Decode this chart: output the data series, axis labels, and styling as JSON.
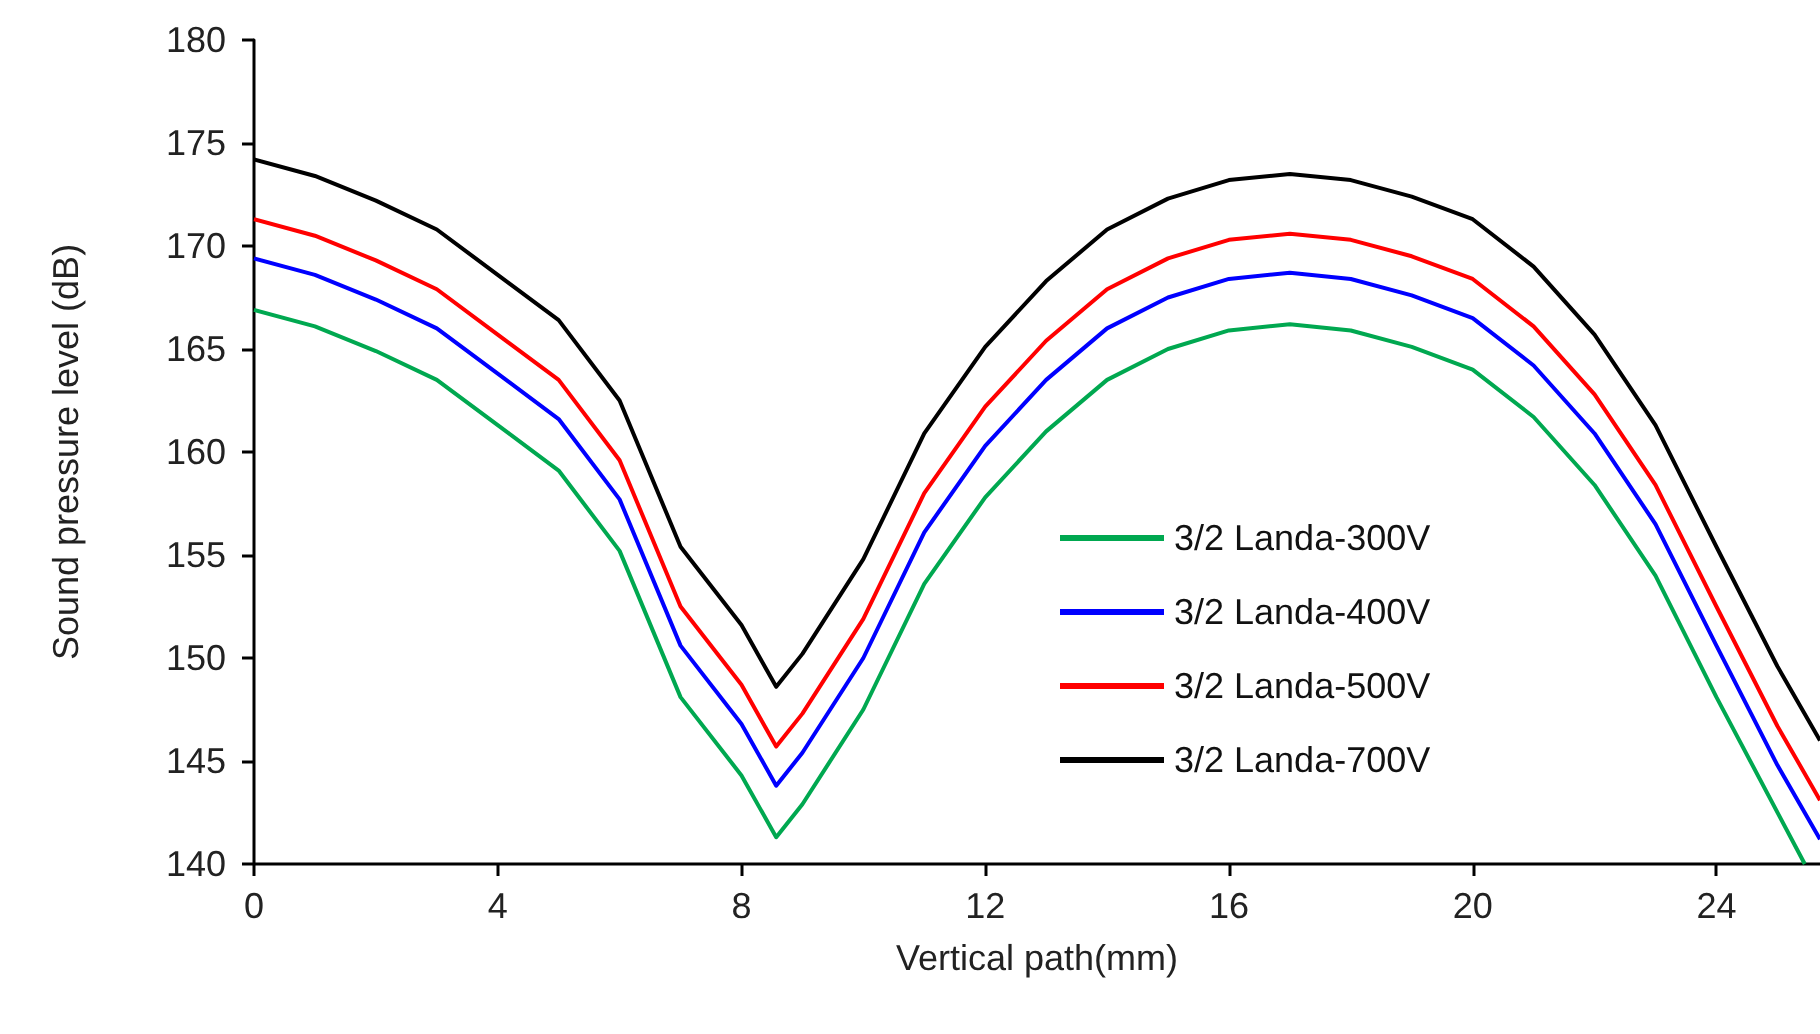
{
  "chart_data": {
    "type": "line",
    "xlabel": "Vertical path(mm)",
    "ylabel": "Sound pressure level (dB)",
    "x": [
      0,
      1,
      2,
      3,
      4,
      5,
      6,
      7,
      8,
      8.57,
      9,
      10,
      11,
      12,
      13,
      14,
      15,
      16,
      17,
      18,
      19,
      20,
      21,
      22,
      23,
      24,
      25,
      25.7
    ],
    "series": [
      {
        "name": "3/2 Landa-300V",
        "color": "#00a850",
        "x": [
          0,
          1,
          2,
          3,
          4,
          5,
          6,
          7,
          8,
          8.57,
          9,
          10,
          11,
          12,
          13,
          14,
          15,
          16,
          17,
          18,
          19,
          20,
          21,
          22,
          23,
          24,
          25.45
        ],
        "values": [
          166.9,
          166.1,
          164.9,
          163.5,
          161.3,
          159.1,
          155.2,
          148.1,
          144.3,
          141.3,
          142.9,
          147.5,
          153.6,
          157.8,
          161,
          163.5,
          165,
          165.9,
          166.2,
          165.9,
          165.1,
          164,
          161.7,
          158.4,
          154,
          148.1,
          140
        ]
      },
      {
        "name": "3/2 Landa-400V",
        "color": "#0000ff",
        "values": [
          169.4,
          168.6,
          167.4,
          166,
          163.8,
          161.6,
          157.7,
          150.6,
          146.8,
          143.8,
          145.4,
          150,
          156.1,
          160.3,
          163.5,
          166,
          167.5,
          168.4,
          168.7,
          168.4,
          167.6,
          166.5,
          164.2,
          160.9,
          156.5,
          150.6,
          144.8,
          141.2
        ]
      },
      {
        "name": "3/2 Landa-500V",
        "color": "#ff0000",
        "values": [
          171.3,
          170.5,
          169.3,
          167.9,
          165.7,
          163.5,
          159.6,
          152.5,
          148.7,
          145.7,
          147.3,
          151.9,
          158,
          162.2,
          165.4,
          167.9,
          169.4,
          170.3,
          170.6,
          170.3,
          169.5,
          168.4,
          166.1,
          162.8,
          158.4,
          152.5,
          146.7,
          143.1
        ]
      },
      {
        "name": "3/2 Landa-700V",
        "color": "#000000",
        "values": [
          174.2,
          173.4,
          172.2,
          170.8,
          168.6,
          166.4,
          162.5,
          155.4,
          151.6,
          148.6,
          150.2,
          154.8,
          160.9,
          165.1,
          168.3,
          170.8,
          172.3,
          173.2,
          173.5,
          173.2,
          172.4,
          171.3,
          169,
          165.7,
          161.3,
          155.4,
          149.6,
          146
        ]
      }
    ],
    "xlim": [
      0,
      25.7
    ],
    "xticks": [
      0,
      4,
      8,
      12,
      16,
      20,
      24
    ],
    "ylim": [
      140,
      180
    ],
    "yticks": [
      140,
      145,
      150,
      155,
      160,
      165,
      170,
      175,
      180
    ],
    "grid": false,
    "legend": "right",
    "marker": "none",
    "line_style": "solid"
  }
}
